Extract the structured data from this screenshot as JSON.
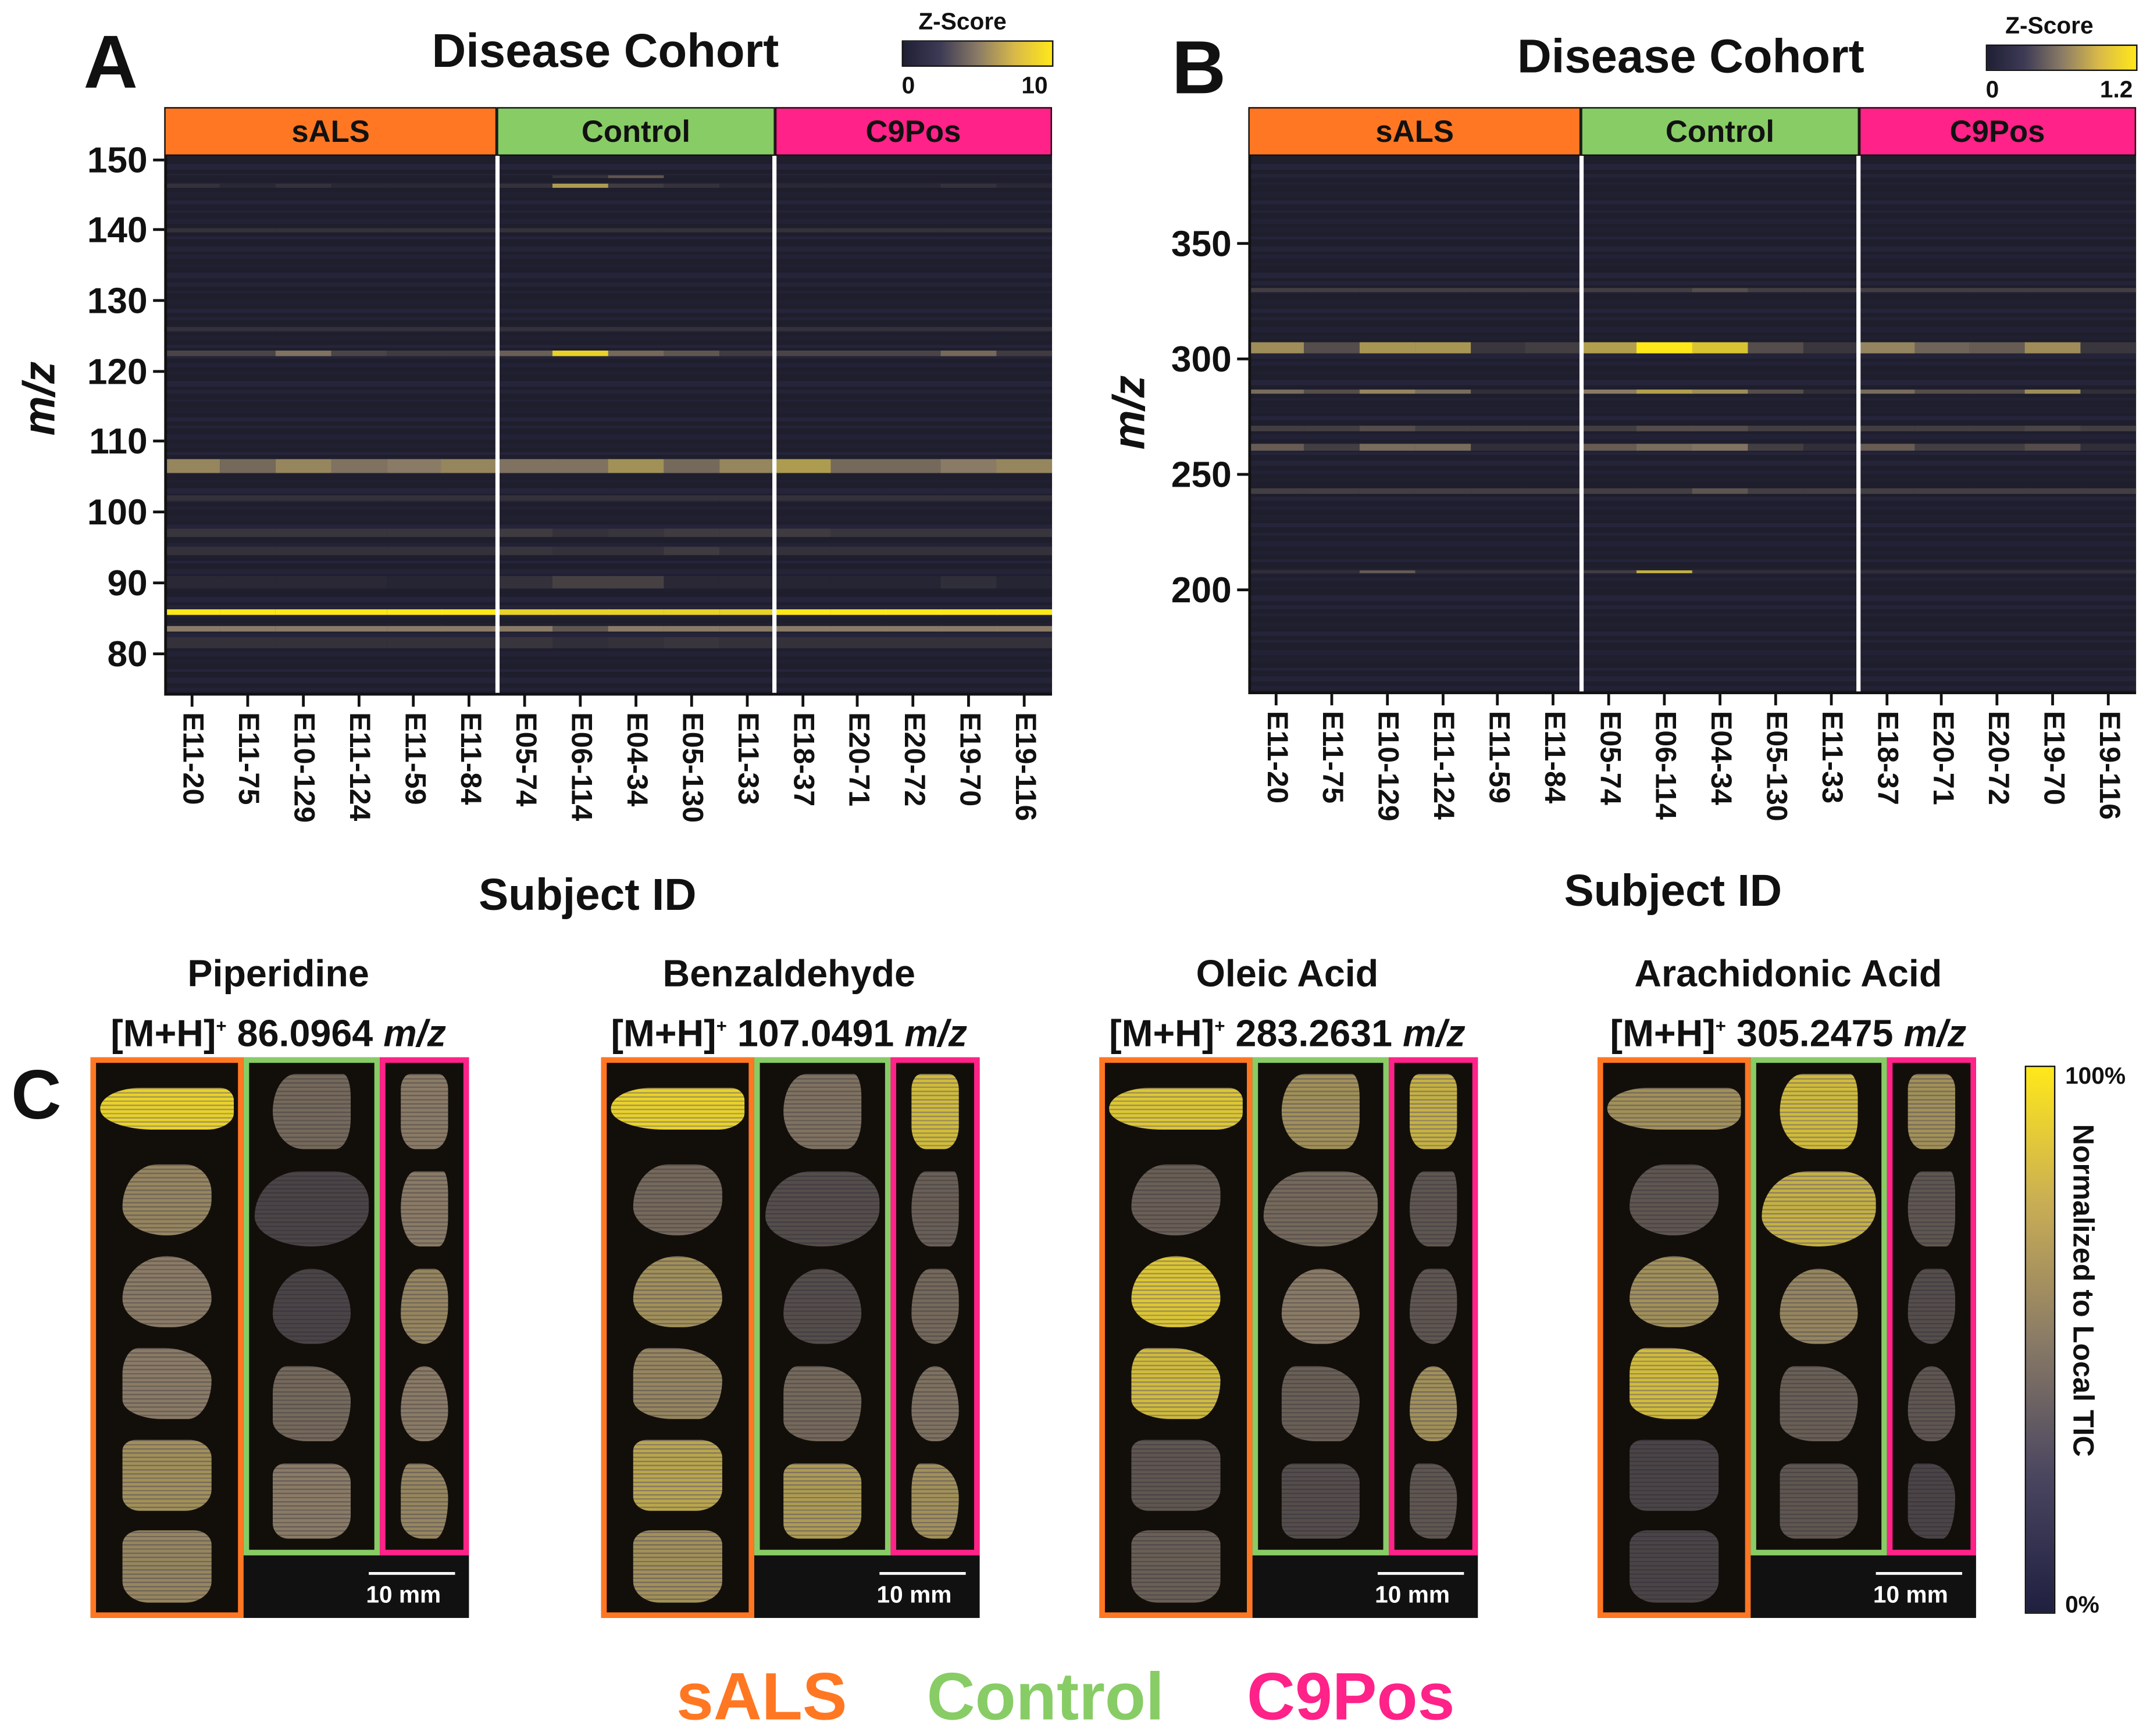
{
  "colors": {
    "sALS": "#FF7722",
    "Control": "#88CC66",
    "C9Pos": "#FF2288",
    "low": "#1f1f30",
    "mid": "#8a7b66",
    "high": "#ffe81a"
  },
  "subjects": [
    "E11-20",
    "E11-75",
    "E10-129",
    "E11-124",
    "E11-59",
    "E11-84",
    "E05-74",
    "E06-114",
    "E04-34",
    "E05-130",
    "E11-33",
    "E18-37",
    "E20-71",
    "E20-72",
    "E19-70",
    "E19-116"
  ],
  "groups": [
    {
      "label": "sALS",
      "count": 6
    },
    {
      "label": "Control",
      "count": 5
    },
    {
      "label": "C9Pos",
      "count": 5
    }
  ],
  "chart_data": [
    {
      "type": "heatmap",
      "panel": "A",
      "title": "Disease Cohort",
      "xlabel": "Subject ID",
      "ylabel": "m/z",
      "colorbar": {
        "label": "Z-Score",
        "min": "0",
        "max": "10",
        "vmin": 0,
        "vmax": 10
      },
      "yticks": [
        "150",
        "140",
        "130",
        "120",
        "110",
        "100",
        "90",
        "80"
      ],
      "ylim": [
        74,
        150.5
      ],
      "bands": [
        {
          "mz": 85.8,
          "h": 0.8,
          "values": [
            10,
            10,
            10,
            10,
            10,
            10,
            9,
            9,
            9,
            9,
            9,
            10,
            10,
            10,
            10,
            10
          ]
        },
        {
          "mz": 83.5,
          "h": 0.7,
          "values": [
            5,
            5,
            5,
            5,
            5,
            5,
            5,
            3,
            5,
            5,
            5,
            5,
            5,
            5,
            5,
            5
          ]
        },
        {
          "mz": 106.5,
          "h": 2,
          "values": [
            5.5,
            4,
            5.5,
            4.5,
            5,
            5.5,
            4.5,
            4.5,
            6,
            4,
            5.5,
            6.5,
            4,
            4,
            5,
            5.5
          ]
        },
        {
          "mz": 122.5,
          "h": 0.6,
          "values": [
            2,
            2,
            4.5,
            2,
            1.5,
            1.5,
            3.5,
            9,
            4,
            3,
            1.5,
            2,
            2,
            2,
            4,
            1.5
          ]
        },
        {
          "mz": 146.3,
          "h": 0.6,
          "values": [
            1,
            0.5,
            1,
            0.5,
            0.5,
            0.5,
            1,
            6.5,
            1.5,
            1,
            0.5,
            0.5,
            0.5,
            0.5,
            1,
            0.5
          ]
        },
        {
          "mz": 147.5,
          "h": 0.5,
          "values": [
            0,
            0,
            0,
            0,
            0,
            0,
            0,
            1,
            3,
            0,
            0,
            0,
            0,
            0,
            0,
            0
          ]
        },
        {
          "mz": 97,
          "h": 1.2,
          "values": [
            1.2,
            1.2,
            1.2,
            1.2,
            1.2,
            1.2,
            1.5,
            1,
            1.2,
            1.5,
            1.5,
            1.5,
            1.2,
            1.2,
            1.2,
            1.2
          ]
        },
        {
          "mz": 94.5,
          "h": 1.2,
          "values": [
            1,
            1,
            1,
            1,
            1,
            1,
            1.2,
            1,
            1,
            1.5,
            1,
            1,
            1,
            1,
            1,
            1
          ]
        },
        {
          "mz": 90,
          "h": 1.8,
          "values": [
            0.5,
            0.5,
            0.5,
            0.5,
            0.3,
            0.3,
            1,
            1.8,
            1.8,
            0.5,
            0.5,
            0.3,
            0.3,
            0.3,
            0.8,
            0.3
          ]
        },
        {
          "mz": 81.5,
          "h": 1.5,
          "values": [
            1,
            1,
            1,
            1,
            1,
            1,
            1.2,
            0.8,
            1,
            1.2,
            1,
            1,
            1,
            1,
            1,
            1
          ]
        },
        {
          "mz": 140,
          "h": 0.5,
          "values": [
            1,
            1,
            1,
            1,
            1,
            1,
            1,
            1,
            1,
            1,
            1,
            1,
            1,
            1,
            1,
            1
          ]
        },
        {
          "mz": 126,
          "h": 0.5,
          "values": [
            1,
            1,
            1,
            1,
            1,
            1,
            1,
            1,
            1,
            1,
            1,
            1,
            1,
            1,
            1,
            1
          ]
        },
        {
          "mz": 102,
          "h": 0.8,
          "values": [
            1,
            1,
            1,
            1,
            1,
            1,
            1,
            1,
            1,
            1,
            1,
            1,
            1,
            1,
            1,
            1
          ]
        }
      ]
    },
    {
      "type": "heatmap",
      "panel": "B",
      "title": "Disease Cohort",
      "xlabel": "Subject ID",
      "ylabel": "m/z",
      "colorbar": {
        "label": "Z-Score",
        "min": "0",
        "max": "1.2",
        "vmin": 0,
        "vmax": 1.2
      },
      "yticks": [
        "350",
        "300",
        "250",
        "200"
      ],
      "ylim": [
        155,
        388
      ],
      "bands": [
        {
          "mz": 305,
          "h": 5,
          "values": [
            0.7,
            0.3,
            0.75,
            0.75,
            0.15,
            0.2,
            0.8,
            1.2,
            1.0,
            0.3,
            0.15,
            0.65,
            0.45,
            0.4,
            0.7,
            0.15
          ]
        },
        {
          "mz": 286,
          "h": 2,
          "values": [
            0.5,
            0.3,
            0.65,
            0.5,
            0.1,
            0.1,
            0.6,
            0.8,
            0.7,
            0.3,
            0.1,
            0.5,
            0.3,
            0.3,
            0.7,
            0.1
          ]
        },
        {
          "mz": 262,
          "h": 3,
          "values": [
            0.4,
            0.2,
            0.5,
            0.5,
            0.1,
            0.1,
            0.4,
            0.5,
            0.55,
            0.2,
            0.1,
            0.4,
            0.2,
            0.2,
            0.3,
            0.1
          ]
        },
        {
          "mz": 208,
          "h": 1.5,
          "values": [
            0.1,
            0.1,
            0.4,
            0.1,
            0.1,
            0.1,
            0.2,
            0.9,
            0.1,
            0.1,
            0.1,
            0.1,
            0.1,
            0.1,
            0.1,
            0.1
          ]
        },
        {
          "mz": 243,
          "h": 2.5,
          "values": [
            0.2,
            0.2,
            0.2,
            0.2,
            0.2,
            0.2,
            0.2,
            0.2,
            0.35,
            0.2,
            0.2,
            0.2,
            0.2,
            0.2,
            0.2,
            0.2
          ]
        },
        {
          "mz": 330,
          "h": 2,
          "values": [
            0.2,
            0.2,
            0.2,
            0.2,
            0.2,
            0.2,
            0.2,
            0.2,
            0.3,
            0.2,
            0.2,
            0.2,
            0.2,
            0.2,
            0.2,
            0.2
          ]
        },
        {
          "mz": 270,
          "h": 2,
          "values": [
            0.2,
            0.2,
            0.3,
            0.2,
            0.2,
            0.2,
            0.2,
            0.3,
            0.3,
            0.2,
            0.2,
            0.2,
            0.2,
            0.2,
            0.25,
            0.2
          ]
        }
      ]
    }
  ],
  "panel_c": {
    "letter": "C",
    "images": [
      {
        "name": "Piperidine",
        "ion": "[M+H]",
        "charge": "+",
        "mz": "86.0964",
        "unit": "m/z",
        "intensity": [
          0.9,
          0.55,
          0.5,
          0.5,
          0.6,
          0.55,
          0.4,
          0.2,
          0.2,
          0.4,
          0.5,
          0.5,
          0.5,
          0.55,
          0.5,
          0.55
        ]
      },
      {
        "name": "Benzaldehyde",
        "ion": "[M+H]",
        "charge": "+",
        "mz": "107.0491",
        "unit": "m/z",
        "intensity": [
          0.9,
          0.4,
          0.6,
          0.55,
          0.7,
          0.6,
          0.45,
          0.25,
          0.25,
          0.4,
          0.65,
          0.8,
          0.35,
          0.4,
          0.45,
          0.6
        ]
      },
      {
        "name": "Oleic Acid",
        "ion": "[M+H]",
        "charge": "+",
        "mz": "283.2631",
        "unit": "m/z",
        "intensity": [
          0.85,
          0.35,
          0.85,
          0.8,
          0.3,
          0.35,
          0.6,
          0.4,
          0.5,
          0.35,
          0.25,
          0.75,
          0.3,
          0.3,
          0.6,
          0.3
        ]
      },
      {
        "name": "Arachidonic Acid",
        "ion": "[M+H]",
        "charge": "+",
        "mz": "305.2475",
        "unit": "m/z",
        "intensity": [
          0.6,
          0.3,
          0.6,
          0.8,
          0.2,
          0.2,
          0.8,
          0.75,
          0.55,
          0.35,
          0.3,
          0.6,
          0.3,
          0.25,
          0.3,
          0.2
        ]
      }
    ],
    "scale_bar": "10 mm",
    "colorbar": {
      "max": "100%",
      "min": "0%",
      "label": "Normalized to Local TIC"
    }
  },
  "legend": [
    "sALS",
    "Control",
    "C9Pos"
  ]
}
